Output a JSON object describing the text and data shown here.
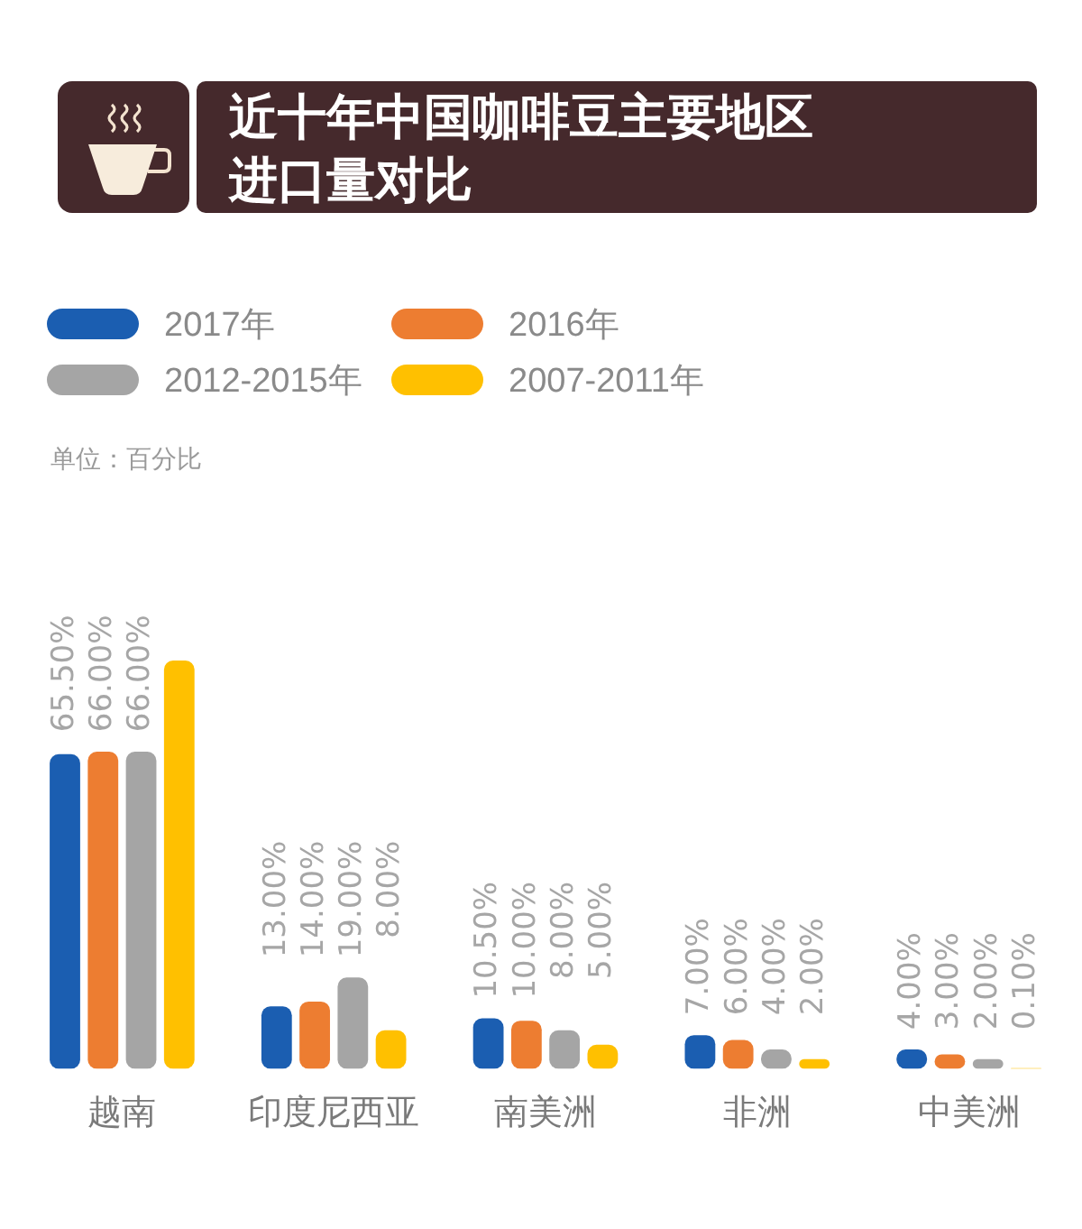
{
  "chart_data": {
    "type": "bar",
    "title": "近十年中国咖啡豆主要地区进口量对比",
    "annotations": [
      "单位：百分比"
    ],
    "categories": [
      "越南",
      "印度尼西亚",
      "南美洲",
      "非洲",
      "中美洲"
    ],
    "series": [
      {
        "name": "2017年",
        "color": "#1b5eb1",
        "values": [
          65.5,
          13,
          10.5,
          7,
          4
        ],
        "value_labels": [
          "65.50%",
          "13.00%",
          "10.50%",
          "7.00%",
          "4.00%"
        ]
      },
      {
        "name": "2016年",
        "color": "#ed7d31",
        "values": [
          66,
          14,
          10,
          6,
          3
        ],
        "value_labels": [
          "66.00%",
          "14.00%",
          "10.00%",
          "6.00%",
          "3.00%"
        ]
      },
      {
        "name": "2012-2015年",
        "color": "#a5a5a5",
        "values": [
          66,
          19,
          8,
          4,
          2
        ],
        "value_labels": [
          "66.00%",
          "19.00%",
          "8.00%",
          "4.00%",
          "2.00%"
        ]
      },
      {
        "name": "2007-2011年",
        "color": "#ffc000",
        "values": [
          85,
          8,
          5,
          2,
          0.1
        ],
        "value_labels": [
          null,
          "8.00%",
          "5.00%",
          "2.00%",
          "0.10%"
        ]
      }
    ],
    "legend": "top left"
  }
}
